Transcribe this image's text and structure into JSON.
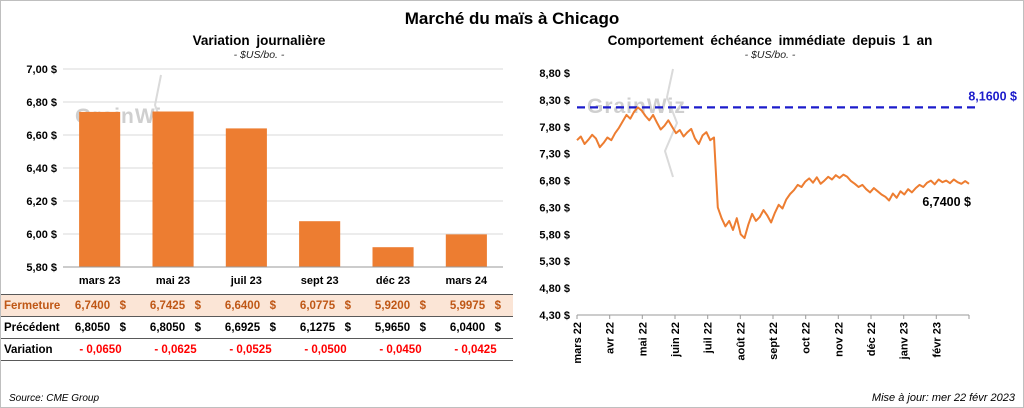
{
  "title": "Marché du maïs à Chicago",
  "watermark": "GrainWiz",
  "colors": {
    "bar": "#ED7D31",
    "line": "#ED7D31",
    "dashed": "#1C1CCB",
    "grid": "#D9D9D9",
    "axis": "#9a9a9a",
    "fermeture_bg": "#FBE5D6",
    "fermeture_text": "#BF5716",
    "variation_text": "#FF0000"
  },
  "chart_data": [
    {
      "type": "bar",
      "title": "Variation journalière",
      "subtitle": "- $US/bo. -",
      "categories": [
        "mars 23",
        "mai 23",
        "juil 23",
        "sept 23",
        "déc 23",
        "mars 24"
      ],
      "values": [
        6.74,
        6.7425,
        6.64,
        6.0775,
        5.92,
        5.9975
      ],
      "ylim": [
        5.8,
        7.0
      ],
      "ytick_step": 0.2,
      "ylabel": "$US/bo.",
      "grid": true,
      "unit": "$"
    },
    {
      "type": "line",
      "title": "Comportement échéance immédiate depuis 1 an",
      "subtitle": "- $US/bo. -",
      "x_labels": [
        "mars 22",
        "avr 22",
        "mai 22",
        "juin 22",
        "juil 22",
        "août 22",
        "sept 22",
        "oct 22",
        "nov 22",
        "déc 22",
        "janv 23",
        "févr 23"
      ],
      "values": [
        7.55,
        7.62,
        7.48,
        7.56,
        7.65,
        7.58,
        7.42,
        7.5,
        7.6,
        7.55,
        7.68,
        7.78,
        7.9,
        8.02,
        7.95,
        8.08,
        8.16,
        8.1,
        8.0,
        7.92,
        8.02,
        7.88,
        7.75,
        7.82,
        7.92,
        7.8,
        7.68,
        7.74,
        7.62,
        7.7,
        7.76,
        7.58,
        7.48,
        7.64,
        7.7,
        7.55,
        7.6,
        6.3,
        6.1,
        5.95,
        6.05,
        5.88,
        6.1,
        5.8,
        5.73,
        5.98,
        6.18,
        6.05,
        6.12,
        6.25,
        6.15,
        6.02,
        6.2,
        6.35,
        6.28,
        6.45,
        6.55,
        6.62,
        6.72,
        6.68,
        6.78,
        6.84,
        6.76,
        6.86,
        6.74,
        6.8,
        6.87,
        6.82,
        6.9,
        6.85,
        6.91,
        6.87,
        6.79,
        6.74,
        6.68,
        6.72,
        6.64,
        6.58,
        6.66,
        6.6,
        6.54,
        6.5,
        6.43,
        6.56,
        6.48,
        6.6,
        6.54,
        6.64,
        6.58,
        6.66,
        6.72,
        6.68,
        6.76,
        6.8,
        6.73,
        6.82,
        6.77,
        6.8,
        6.75,
        6.82,
        6.77,
        6.74,
        6.79,
        6.74
      ],
      "ylim": [
        4.3,
        8.8
      ],
      "ytick_step": 0.5,
      "grid": false,
      "ref_line": {
        "value": 8.16,
        "label": "8,1600 $"
      },
      "last_label": "6,7400 $"
    }
  ],
  "table": {
    "rows": [
      {
        "label": "Fermeture",
        "style": "fermeture",
        "unit": "$",
        "values": [
          "6,7400",
          "6,7425",
          "6,6400",
          "6,0775",
          "5,9200",
          "5,9975"
        ]
      },
      {
        "label": "Précédent",
        "style": "precedent",
        "unit": "$",
        "values": [
          "6,8050",
          "6,8050",
          "6,6925",
          "6,1275",
          "5,9650",
          "6,0400"
        ]
      },
      {
        "label": "Variation",
        "style": "variation",
        "unit": "",
        "values": [
          "- 0,0650",
          "- 0,0625",
          "- 0,0525",
          "- 0,0500",
          "- 0,0450",
          "- 0,0425"
        ]
      }
    ]
  },
  "footer": {
    "source": "Source: CME Group",
    "updated": "Mise à jour: mer 22 févr 2023"
  }
}
